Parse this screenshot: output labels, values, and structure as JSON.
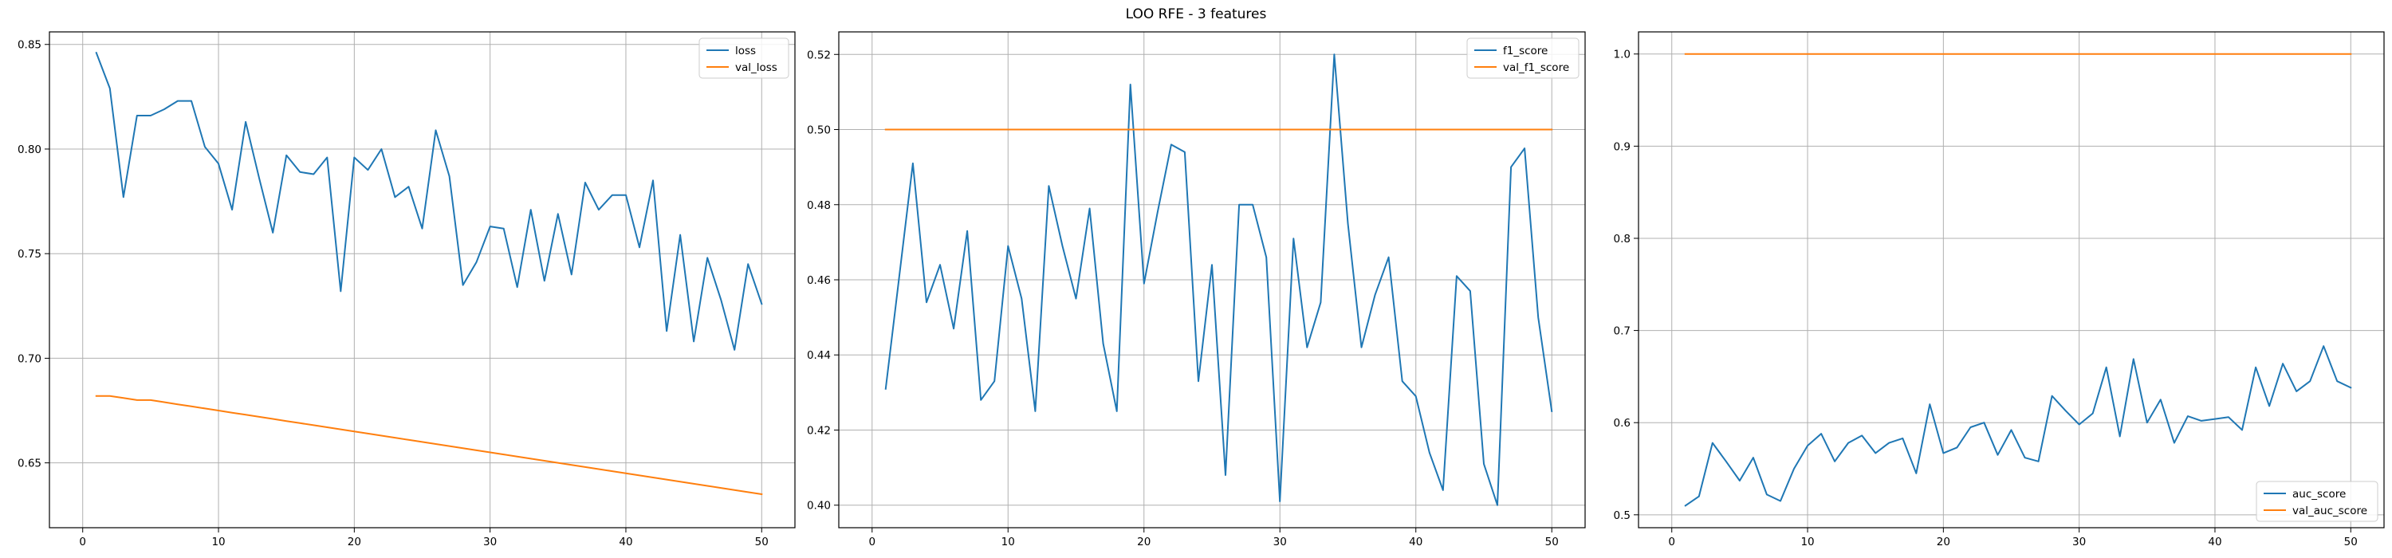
{
  "figure": {
    "title": "LOO RFE - 3 features"
  },
  "colors": {
    "train": "#1f77b4",
    "val": "#ff7f0e",
    "grid": "#b0b0b0"
  },
  "chart_data": [
    {
      "type": "line",
      "xlim": [
        -2.45,
        52.45
      ],
      "ylim": [
        0.619,
        0.856
      ],
      "xticks": [
        0,
        10,
        20,
        30,
        40,
        50
      ],
      "yticks": [
        0.65,
        0.7,
        0.75,
        0.8,
        0.85
      ],
      "ytick_labels": [
        "0.65",
        "0.70",
        "0.75",
        "0.80",
        "0.85"
      ],
      "grid": true,
      "legend": "top-right",
      "x": [
        1,
        2,
        3,
        4,
        5,
        6,
        7,
        8,
        9,
        10,
        11,
        12,
        13,
        14,
        15,
        16,
        17,
        18,
        19,
        20,
        21,
        22,
        23,
        24,
        25,
        26,
        27,
        28,
        29,
        30,
        31,
        32,
        33,
        34,
        35,
        36,
        37,
        38,
        39,
        40,
        41,
        42,
        43,
        44,
        45,
        46,
        47,
        48,
        49,
        50
      ],
      "series": [
        {
          "name": "loss",
          "color": "#1f77b4",
          "values": [
            0.846,
            0.829,
            0.777,
            0.816,
            0.816,
            0.819,
            0.823,
            0.823,
            0.801,
            0.793,
            0.771,
            0.813,
            0.786,
            0.76,
            0.797,
            0.789,
            0.788,
            0.796,
            0.732,
            0.796,
            0.79,
            0.8,
            0.777,
            0.782,
            0.762,
            0.809,
            0.787,
            0.735,
            0.746,
            0.763,
            0.762,
            0.734,
            0.771,
            0.737,
            0.769,
            0.74,
            0.784,
            0.771,
            0.778,
            0.778,
            0.753,
            0.785,
            0.713,
            0.759,
            0.708,
            0.748,
            0.728,
            0.704,
            0.745,
            0.726
          ]
        },
        {
          "name": "val_loss",
          "color": "#ff7f0e",
          "values": [
            0.682,
            0.682,
            0.681,
            0.68,
            0.68,
            0.679,
            0.678,
            0.677,
            0.676,
            0.675,
            0.674,
            0.673,
            0.672,
            0.671,
            0.67,
            0.669,
            0.668,
            0.667,
            0.666,
            0.665,
            0.664,
            0.663,
            0.662,
            0.661,
            0.66,
            0.659,
            0.658,
            0.657,
            0.656,
            0.655,
            0.654,
            0.653,
            0.652,
            0.651,
            0.65,
            0.649,
            0.648,
            0.647,
            0.646,
            0.645,
            0.644,
            0.643,
            0.642,
            0.641,
            0.64,
            0.639,
            0.638,
            0.637,
            0.636,
            0.635
          ]
        }
      ]
    },
    {
      "type": "line",
      "xlim": [
        -2.45,
        52.45
      ],
      "ylim": [
        0.394,
        0.526
      ],
      "xticks": [
        0,
        10,
        20,
        30,
        40,
        50
      ],
      "yticks": [
        0.4,
        0.42,
        0.44,
        0.46,
        0.48,
        0.5,
        0.52
      ],
      "ytick_labels": [
        "0.40",
        "0.42",
        "0.44",
        "0.46",
        "0.48",
        "0.50",
        "0.52"
      ],
      "grid": true,
      "legend": "top-right",
      "x": [
        1,
        2,
        3,
        4,
        5,
        6,
        7,
        8,
        9,
        10,
        11,
        12,
        13,
        14,
        15,
        16,
        17,
        18,
        19,
        20,
        21,
        22,
        23,
        24,
        25,
        26,
        27,
        28,
        29,
        30,
        31,
        32,
        33,
        34,
        35,
        36,
        37,
        38,
        39,
        40,
        41,
        42,
        43,
        44,
        45,
        46,
        47,
        48,
        49,
        50
      ],
      "series": [
        {
          "name": "f1_score",
          "color": "#1f77b4",
          "values": [
            0.431,
            0.461,
            0.491,
            0.454,
            0.464,
            0.447,
            0.473,
            0.428,
            0.433,
            0.469,
            0.455,
            0.425,
            0.485,
            0.469,
            0.455,
            0.479,
            0.443,
            0.425,
            0.512,
            0.459,
            0.478,
            0.496,
            0.494,
            0.433,
            0.464,
            0.408,
            0.48,
            0.48,
            0.466,
            0.401,
            0.471,
            0.442,
            0.454,
            0.52,
            0.475,
            0.442,
            0.456,
            0.466,
            0.433,
            0.429,
            0.414,
            0.404,
            0.461,
            0.457,
            0.411,
            0.4,
            0.49,
            0.495,
            0.45,
            0.425
          ]
        },
        {
          "name": "val_f1_score",
          "color": "#ff7f0e",
          "values": [
            0.5,
            0.5,
            0.5,
            0.5,
            0.5,
            0.5,
            0.5,
            0.5,
            0.5,
            0.5,
            0.5,
            0.5,
            0.5,
            0.5,
            0.5,
            0.5,
            0.5,
            0.5,
            0.5,
            0.5,
            0.5,
            0.5,
            0.5,
            0.5,
            0.5,
            0.5,
            0.5,
            0.5,
            0.5,
            0.5,
            0.5,
            0.5,
            0.5,
            0.5,
            0.5,
            0.5,
            0.5,
            0.5,
            0.5,
            0.5,
            0.5,
            0.5,
            0.5,
            0.5,
            0.5,
            0.5,
            0.5,
            0.5,
            0.5,
            0.5
          ]
        }
      ]
    },
    {
      "type": "line",
      "xlim": [
        -2.45,
        52.45
      ],
      "ylim": [
        0.486,
        1.024
      ],
      "xticks": [
        0,
        10,
        20,
        30,
        40,
        50
      ],
      "yticks": [
        0.5,
        0.6,
        0.7,
        0.8,
        0.9,
        1.0
      ],
      "ytick_labels": [
        "0.5",
        "0.6",
        "0.7",
        "0.8",
        "0.9",
        "1.0"
      ],
      "grid": true,
      "legend": "bottom-right",
      "x": [
        1,
        2,
        3,
        4,
        5,
        6,
        7,
        8,
        9,
        10,
        11,
        12,
        13,
        14,
        15,
        16,
        17,
        18,
        19,
        20,
        21,
        22,
        23,
        24,
        25,
        26,
        27,
        28,
        29,
        30,
        31,
        32,
        33,
        34,
        35,
        36,
        37,
        38,
        39,
        40,
        41,
        42,
        43,
        44,
        45,
        46,
        47,
        48,
        49,
        50
      ],
      "series": [
        {
          "name": "auc_score",
          "color": "#1f77b4",
          "values": [
            0.51,
            0.52,
            0.578,
            0.558,
            0.537,
            0.562,
            0.522,
            0.515,
            0.55,
            0.575,
            0.588,
            0.558,
            0.578,
            0.586,
            0.567,
            0.578,
            0.583,
            0.545,
            0.62,
            0.567,
            0.573,
            0.595,
            0.6,
            0.565,
            0.592,
            0.562,
            0.558,
            0.629,
            0.613,
            0.598,
            0.61,
            0.66,
            0.585,
            0.669,
            0.6,
            0.625,
            0.578,
            0.607,
            0.602,
            0.604,
            0.606,
            0.592,
            0.66,
            0.618,
            0.664,
            0.634,
            0.645,
            0.683,
            0.645,
            0.638
          ]
        },
        {
          "name": "val_auc_score",
          "color": "#ff7f0e",
          "values": [
            1.0,
            1.0,
            1.0,
            1.0,
            1.0,
            1.0,
            1.0,
            1.0,
            1.0,
            1.0,
            1.0,
            1.0,
            1.0,
            1.0,
            1.0,
            1.0,
            1.0,
            1.0,
            1.0,
            1.0,
            1.0,
            1.0,
            1.0,
            1.0,
            1.0,
            1.0,
            1.0,
            1.0,
            1.0,
            1.0,
            1.0,
            1.0,
            1.0,
            1.0,
            1.0,
            1.0,
            1.0,
            1.0,
            1.0,
            1.0,
            1.0,
            1.0,
            1.0,
            1.0,
            1.0,
            1.0,
            1.0,
            1.0,
            1.0,
            1.0
          ]
        }
      ]
    }
  ]
}
